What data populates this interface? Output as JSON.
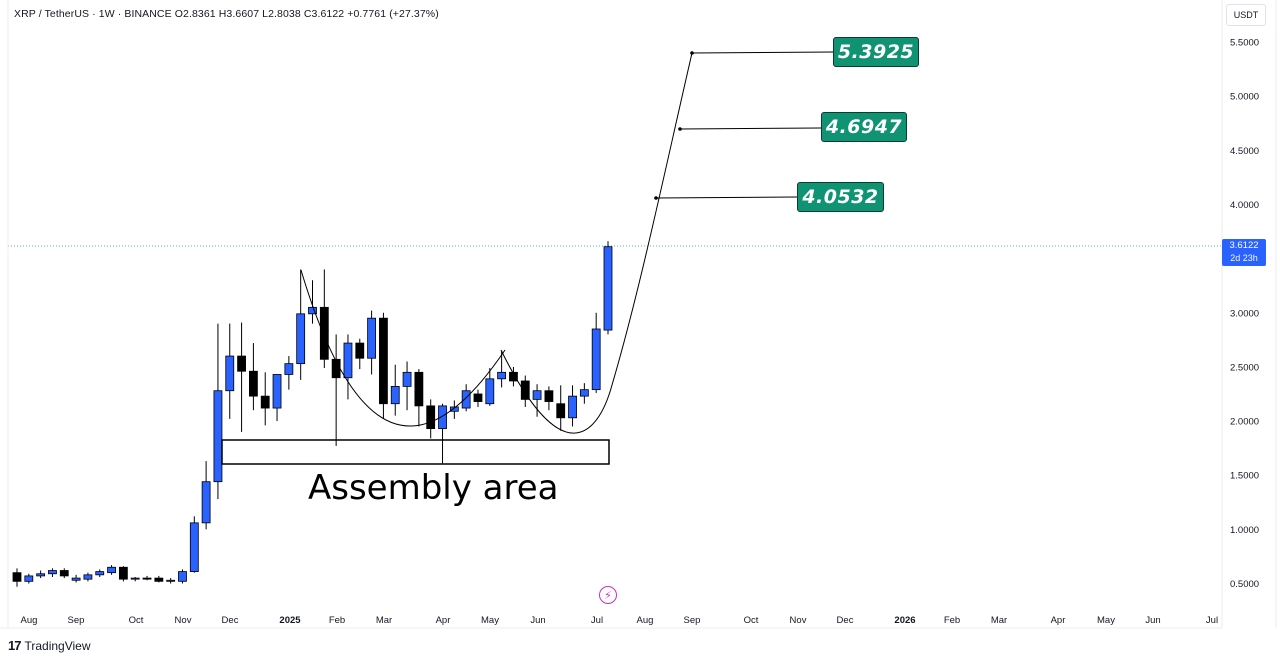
{
  "header": {
    "symbol_info": "XRP / TetherUS · 1W · BINANCE  O2.8361  H3.6607  L2.8038  C3.6122  +0.7761 (+27.37%)"
  },
  "currency": "USDT",
  "last_price": {
    "value": "3.6122",
    "countdown": "2d 23h"
  },
  "annotation": {
    "label": "Assembly area"
  },
  "targets": [
    "5.3925",
    "4.6947",
    "4.0532"
  ],
  "branding": {
    "logo_text": "TradingView"
  },
  "icons": {
    "flash": "flash-icon",
    "logo": "tradingview-logo-icon"
  },
  "colors": {
    "up": "#2962ff",
    "down": "#000000",
    "target_bg": "#0f9373",
    "price_tag": "#2962ff",
    "price_line": "#5fb3b3"
  },
  "chart_data": {
    "type": "candlestick",
    "y_scale": "linear",
    "ylim": [
      0.35,
      5.7
    ],
    "y_ticks": [
      "5.5000",
      "5.0000",
      "4.5000",
      "4.0000",
      "3.5000",
      "3.0000",
      "2.5000",
      "2.0000",
      "1.5000",
      "1.0000",
      "0.5000"
    ],
    "x_ticks": [
      "Aug",
      "Sep",
      "Oct",
      "Nov",
      "Dec",
      "2025",
      "Feb",
      "Mar",
      "Apr",
      "May",
      "Jun",
      "Jul",
      "Aug",
      "Sep",
      "Oct",
      "Nov",
      "Dec",
      "2026",
      "Feb",
      "Mar",
      "Apr",
      "May",
      "Jun",
      "Jul"
    ],
    "last_price": 3.6122,
    "candles": [
      {
        "o": 0.6,
        "h": 0.64,
        "l": 0.47,
        "c": 0.52
      },
      {
        "o": 0.52,
        "h": 0.59,
        "l": 0.5,
        "c": 0.57
      },
      {
        "o": 0.57,
        "h": 0.62,
        "l": 0.55,
        "c": 0.59
      },
      {
        "o": 0.59,
        "h": 0.64,
        "l": 0.56,
        "c": 0.62
      },
      {
        "o": 0.62,
        "h": 0.64,
        "l": 0.55,
        "c": 0.57
      },
      {
        "o": 0.53,
        "h": 0.58,
        "l": 0.51,
        "c": 0.55
      },
      {
        "o": 0.54,
        "h": 0.6,
        "l": 0.52,
        "c": 0.58
      },
      {
        "o": 0.58,
        "h": 0.63,
        "l": 0.56,
        "c": 0.61
      },
      {
        "o": 0.6,
        "h": 0.67,
        "l": 0.58,
        "c": 0.65
      },
      {
        "o": 0.65,
        "h": 0.66,
        "l": 0.52,
        "c": 0.54
      },
      {
        "o": 0.54,
        "h": 0.56,
        "l": 0.52,
        "c": 0.55
      },
      {
        "o": 0.55,
        "h": 0.57,
        "l": 0.53,
        "c": 0.54
      },
      {
        "o": 0.55,
        "h": 0.57,
        "l": 0.51,
        "c": 0.52
      },
      {
        "o": 0.52,
        "h": 0.55,
        "l": 0.5,
        "c": 0.53
      },
      {
        "o": 0.52,
        "h": 0.63,
        "l": 0.5,
        "c": 0.61
      },
      {
        "o": 0.61,
        "h": 1.12,
        "l": 0.6,
        "c": 1.06
      },
      {
        "o": 1.06,
        "h": 1.63,
        "l": 1.0,
        "c": 1.44
      },
      {
        "o": 1.44,
        "h": 2.9,
        "l": 1.28,
        "c": 2.28
      },
      {
        "o": 2.28,
        "h": 2.9,
        "l": 2.02,
        "c": 2.6
      },
      {
        "o": 2.6,
        "h": 2.91,
        "l": 1.9,
        "c": 2.46
      },
      {
        "o": 2.46,
        "h": 2.72,
        "l": 2.1,
        "c": 2.23
      },
      {
        "o": 2.23,
        "h": 2.45,
        "l": 1.96,
        "c": 2.12
      },
      {
        "o": 2.12,
        "h": 2.4,
        "l": 2.0,
        "c": 2.43
      },
      {
        "o": 2.43,
        "h": 2.6,
        "l": 2.29,
        "c": 2.53
      },
      {
        "o": 2.53,
        "h": 3.4,
        "l": 2.38,
        "c": 2.99
      },
      {
        "o": 2.99,
        "h": 3.3,
        "l": 2.9,
        "c": 3.05
      },
      {
        "o": 3.05,
        "h": 3.4,
        "l": 2.49,
        "c": 2.57
      },
      {
        "o": 2.57,
        "h": 2.8,
        "l": 1.77,
        "c": 2.4
      },
      {
        "o": 2.4,
        "h": 2.8,
        "l": 2.2,
        "c": 2.72
      },
      {
        "o": 2.72,
        "h": 2.76,
        "l": 2.48,
        "c": 2.58
      },
      {
        "o": 2.58,
        "h": 3.02,
        "l": 2.43,
        "c": 2.95
      },
      {
        "o": 2.95,
        "h": 3.0,
        "l": 2.02,
        "c": 2.16
      },
      {
        "o": 2.16,
        "h": 2.52,
        "l": 2.05,
        "c": 2.32
      },
      {
        "o": 2.32,
        "h": 2.55,
        "l": 2.1,
        "c": 2.45
      },
      {
        "o": 2.45,
        "h": 2.48,
        "l": 1.95,
        "c": 2.14
      },
      {
        "o": 2.14,
        "h": 2.2,
        "l": 1.84,
        "c": 1.93
      },
      {
        "o": 1.93,
        "h": 2.16,
        "l": 1.61,
        "c": 2.14
      },
      {
        "o": 2.09,
        "h": 2.19,
        "l": 2.02,
        "c": 2.13
      },
      {
        "o": 2.12,
        "h": 2.34,
        "l": 2.09,
        "c": 2.28
      },
      {
        "o": 2.25,
        "h": 2.29,
        "l": 2.13,
        "c": 2.18
      },
      {
        "o": 2.16,
        "h": 2.49,
        "l": 2.14,
        "c": 2.39
      },
      {
        "o": 2.39,
        "h": 2.65,
        "l": 2.31,
        "c": 2.45
      },
      {
        "o": 2.45,
        "h": 2.5,
        "l": 2.32,
        "c": 2.37
      },
      {
        "o": 2.37,
        "h": 2.42,
        "l": 2.13,
        "c": 2.2
      },
      {
        "o": 2.2,
        "h": 2.34,
        "l": 2.04,
        "c": 2.28
      },
      {
        "o": 2.28,
        "h": 2.32,
        "l": 2.1,
        "c": 2.18
      },
      {
        "o": 2.16,
        "h": 2.33,
        "l": 1.91,
        "c": 2.03
      },
      {
        "o": 2.03,
        "h": 2.33,
        "l": 1.95,
        "c": 2.23
      },
      {
        "o": 2.23,
        "h": 2.35,
        "l": 2.16,
        "c": 2.29
      },
      {
        "o": 2.29,
        "h": 3.0,
        "l": 2.26,
        "c": 2.85
      },
      {
        "o": 2.84,
        "h": 3.66,
        "l": 2.8,
        "c": 3.61
      }
    ]
  }
}
